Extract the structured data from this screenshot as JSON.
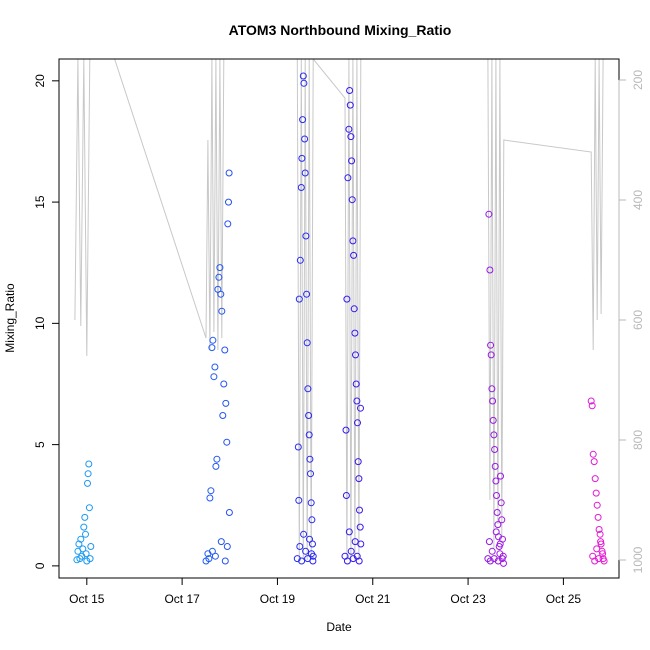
{
  "chart_data": {
    "type": "scatter",
    "title": "ATOM3 Northbound Mixing_Ratio",
    "xlabel": "Date",
    "ylabel": "Mixing_Ratio",
    "x_type": "date",
    "xlim": [
      "2017-10-14 10:00",
      "2017-10-26 04:00"
    ],
    "ylim": [
      -0.5,
      20.9
    ],
    "y2lim": [
      1030,
      165
    ],
    "x_ticks": [
      {
        "value": "2017-10-15",
        "label": "Oct 15"
      },
      {
        "value": "2017-10-17",
        "label": "Oct 17"
      },
      {
        "value": "2017-10-19",
        "label": "Oct 19"
      },
      {
        "value": "2017-10-21",
        "label": "Oct 21"
      },
      {
        "value": "2017-10-23",
        "label": "Oct 23"
      },
      {
        "value": "2017-10-25",
        "label": "Oct 25"
      }
    ],
    "y_ticks": [
      0,
      5,
      10,
      15,
      20
    ],
    "y2_ticks": [
      200,
      400,
      600,
      800,
      1000
    ],
    "colors": {
      "start": "#1aa6f2",
      "end": "#f21ad2",
      "mid": "#2a1af2",
      "secondary_line": "#c8c8c8",
      "right_axis": "#b8b8b8"
    },
    "marker": "open-circle",
    "series": [
      {
        "group": 1,
        "points": [
          [
            "2017-10-14 19:00",
            0.25
          ],
          [
            "2017-10-14 19:30",
            0.6
          ],
          [
            "2017-10-14 20:00",
            0.9
          ],
          [
            "2017-10-14 20:30",
            0.3
          ],
          [
            "2017-10-14 21:00",
            1.1
          ],
          [
            "2017-10-14 21:30",
            0.4
          ],
          [
            "2017-10-14 22:00",
            0.7
          ],
          [
            "2017-10-14 22:30",
            1.6
          ],
          [
            "2017-10-14 23:00",
            2.0
          ],
          [
            "2017-10-14 23:20",
            1.3
          ],
          [
            "2017-10-14 23:40",
            0.5
          ],
          [
            "2017-10-15 00:00",
            0.2
          ],
          [
            "2017-10-15 00:20",
            3.4
          ],
          [
            "2017-10-15 00:40",
            3.8
          ],
          [
            "2017-10-15 01:00",
            4.2
          ],
          [
            "2017-10-15 01:20",
            2.4
          ],
          [
            "2017-10-15 01:40",
            0.3
          ],
          [
            "2017-10-15 02:00",
            0.8
          ]
        ]
      },
      {
        "group": 2,
        "points": [
          [
            "2017-10-17 12:00",
            0.2
          ],
          [
            "2017-10-17 13:00",
            0.5
          ],
          [
            "2017-10-17 14:00",
            2.8
          ],
          [
            "2017-10-17 14:30",
            3.1
          ],
          [
            "2017-10-17 15:00",
            9.0
          ],
          [
            "2017-10-17 15:30",
            9.3
          ],
          [
            "2017-10-17 16:00",
            7.8
          ],
          [
            "2017-10-17 16:30",
            8.2
          ],
          [
            "2017-10-17 17:00",
            4.1
          ],
          [
            "2017-10-17 17:30",
            4.4
          ],
          [
            "2017-10-17 18:00",
            11.4
          ],
          [
            "2017-10-17 18:30",
            11.9
          ],
          [
            "2017-10-17 19:00",
            12.3
          ],
          [
            "2017-10-17 19:30",
            11.2
          ],
          [
            "2017-10-17 20:00",
            10.5
          ],
          [
            "2017-10-17 20:30",
            6.2
          ],
          [
            "2017-10-17 21:00",
            7.5
          ],
          [
            "2017-10-17 21:30",
            8.9
          ],
          [
            "2017-10-17 22:00",
            6.7
          ],
          [
            "2017-10-17 22:30",
            5.1
          ],
          [
            "2017-10-17 23:00",
            14.1
          ],
          [
            "2017-10-17 23:20",
            15.0
          ],
          [
            "2017-10-17 23:40",
            16.2
          ],
          [
            "2017-10-17 23:50",
            2.2
          ],
          [
            "2017-10-17 13:30",
            0.3
          ],
          [
            "2017-10-17 15:15",
            0.6
          ],
          [
            "2017-10-17 16:45",
            0.4
          ],
          [
            "2017-10-17 19:45",
            1.0
          ],
          [
            "2017-10-17 21:45",
            0.2
          ],
          [
            "2017-10-17 22:45",
            0.8
          ]
        ]
      },
      {
        "group": 3,
        "points": [
          [
            "2017-10-19 10:00",
            0.3
          ],
          [
            "2017-10-19 10:30",
            4.9
          ],
          [
            "2017-10-19 11:00",
            11.0
          ],
          [
            "2017-10-19 11:30",
            12.6
          ],
          [
            "2017-10-19 12:00",
            15.6
          ],
          [
            "2017-10-19 12:20",
            16.8
          ],
          [
            "2017-10-19 12:40",
            18.4
          ],
          [
            "2017-10-19 13:00",
            20.2
          ],
          [
            "2017-10-19 13:20",
            19.9
          ],
          [
            "2017-10-19 13:40",
            17.6
          ],
          [
            "2017-10-19 14:00",
            16.2
          ],
          [
            "2017-10-19 14:20",
            13.6
          ],
          [
            "2017-10-19 14:40",
            11.2
          ],
          [
            "2017-10-19 15:00",
            9.2
          ],
          [
            "2017-10-19 15:20",
            7.3
          ],
          [
            "2017-10-19 15:40",
            6.2
          ],
          [
            "2017-10-19 16:00",
            5.4
          ],
          [
            "2017-10-19 16:20",
            4.4
          ],
          [
            "2017-10-19 16:40",
            3.8
          ],
          [
            "2017-10-19 17:00",
            2.6
          ],
          [
            "2017-10-19 17:20",
            1.9
          ],
          [
            "2017-10-19 17:40",
            0.9
          ],
          [
            "2017-10-19 18:00",
            0.4
          ],
          [
            "2017-10-19 10:45",
            2.7
          ],
          [
            "2017-10-19 11:15",
            0.8
          ],
          [
            "2017-10-19 12:10",
            0.2
          ],
          [
            "2017-10-19 13:10",
            1.3
          ],
          [
            "2017-10-19 14:10",
            0.6
          ],
          [
            "2017-10-19 15:10",
            0.3
          ],
          [
            "2017-10-19 16:10",
            1.1
          ],
          [
            "2017-10-19 17:10",
            0.5
          ],
          [
            "2017-10-19 17:50",
            0.2
          ]
        ]
      },
      {
        "group": 4,
        "points": [
          [
            "2017-10-20 10:00",
            0.4
          ],
          [
            "2017-10-20 10:30",
            5.6
          ],
          [
            "2017-10-20 11:00",
            11.0
          ],
          [
            "2017-10-20 11:30",
            16.0
          ],
          [
            "2017-10-20 12:00",
            18.0
          ],
          [
            "2017-10-20 12:20",
            19.6
          ],
          [
            "2017-10-20 12:40",
            19.0
          ],
          [
            "2017-10-20 13:00",
            17.7
          ],
          [
            "2017-10-20 13:20",
            16.7
          ],
          [
            "2017-10-20 13:40",
            15.1
          ],
          [
            "2017-10-20 14:00",
            13.4
          ],
          [
            "2017-10-20 14:20",
            12.8
          ],
          [
            "2017-10-20 14:40",
            10.6
          ],
          [
            "2017-10-20 15:00",
            9.6
          ],
          [
            "2017-10-20 15:20",
            8.7
          ],
          [
            "2017-10-20 15:40",
            7.5
          ],
          [
            "2017-10-20 16:00",
            6.8
          ],
          [
            "2017-10-20 16:20",
            5.9
          ],
          [
            "2017-10-20 16:40",
            4.3
          ],
          [
            "2017-10-20 17:00",
            3.6
          ],
          [
            "2017-10-20 17:20",
            2.3
          ],
          [
            "2017-10-20 17:40",
            1.6
          ],
          [
            "2017-10-20 18:00",
            0.9
          ],
          [
            "2017-10-20 10:45",
            2.9
          ],
          [
            "2017-10-20 11:15",
            0.2
          ],
          [
            "2017-10-20 12:10",
            1.4
          ],
          [
            "2017-10-20 13:10",
            0.6
          ],
          [
            "2017-10-20 14:10",
            0.3
          ],
          [
            "2017-10-20 15:10",
            1.0
          ],
          [
            "2017-10-20 16:10",
            0.4
          ],
          [
            "2017-10-20 17:10",
            0.2
          ],
          [
            "2017-10-20 17:50",
            6.5
          ]
        ]
      },
      {
        "group": 5,
        "points": [
          [
            "2017-10-23 10:00",
            0.3
          ],
          [
            "2017-10-23 10:30",
            14.5
          ],
          [
            "2017-10-23 11:00",
            12.2
          ],
          [
            "2017-10-23 11:20",
            9.1
          ],
          [
            "2017-10-23 11:40",
            8.7
          ],
          [
            "2017-10-23 12:00",
            7.3
          ],
          [
            "2017-10-23 12:20",
            6.8
          ],
          [
            "2017-10-23 12:40",
            6.0
          ],
          [
            "2017-10-23 13:00",
            5.4
          ],
          [
            "2017-10-23 13:20",
            4.8
          ],
          [
            "2017-10-23 13:40",
            4.1
          ],
          [
            "2017-10-23 14:00",
            3.5
          ],
          [
            "2017-10-23 14:20",
            2.9
          ],
          [
            "2017-10-23 14:40",
            2.2
          ],
          [
            "2017-10-23 15:00",
            1.7
          ],
          [
            "2017-10-23 15:20",
            1.2
          ],
          [
            "2017-10-23 15:40",
            0.8
          ],
          [
            "2017-10-23 16:00",
            0.5
          ],
          [
            "2017-10-23 16:20",
            3.7
          ],
          [
            "2017-10-23 16:40",
            2.6
          ],
          [
            "2017-10-23 17:00",
            1.9
          ],
          [
            "2017-10-23 17:20",
            1.1
          ],
          [
            "2017-10-23 17:40",
            0.4
          ],
          [
            "2017-10-23 10:45",
            1.0
          ],
          [
            "2017-10-23 11:10",
            0.2
          ],
          [
            "2017-10-23 12:10",
            0.6
          ],
          [
            "2017-10-23 13:10",
            0.3
          ],
          [
            "2017-10-23 14:10",
            1.4
          ],
          [
            "2017-10-23 15:10",
            0.2
          ],
          [
            "2017-10-23 16:10",
            0.9
          ],
          [
            "2017-10-23 17:10",
            0.3
          ],
          [
            "2017-10-23 17:50",
            0.1
          ]
        ]
      },
      {
        "group": 6,
        "points": [
          [
            "2017-10-25 14:00",
            6.8
          ],
          [
            "2017-10-25 14:30",
            6.6
          ],
          [
            "2017-10-25 15:00",
            4.6
          ],
          [
            "2017-10-25 15:30",
            4.3
          ],
          [
            "2017-10-25 16:00",
            3.6
          ],
          [
            "2017-10-25 16:30",
            3.0
          ],
          [
            "2017-10-25 17:00",
            2.5
          ],
          [
            "2017-10-25 17:30",
            2.0
          ],
          [
            "2017-10-25 18:00",
            1.5
          ],
          [
            "2017-10-25 18:30",
            1.3
          ],
          [
            "2017-10-25 19:00",
            0.9
          ],
          [
            "2017-10-25 19:30",
            0.6
          ],
          [
            "2017-10-25 20:00",
            0.3
          ],
          [
            "2017-10-25 20:30",
            0.2
          ],
          [
            "2017-10-25 14:45",
            0.4
          ],
          [
            "2017-10-25 15:45",
            0.2
          ],
          [
            "2017-10-25 16:45",
            0.7
          ],
          [
            "2017-10-25 17:45",
            0.3
          ],
          [
            "2017-10-25 18:45",
            1.0
          ],
          [
            "2017-10-25 19:45",
            0.5
          ]
        ]
      }
    ],
    "secondary_series": {
      "axis": "right",
      "segments": [
        [
          [
            "2017-10-14 18:00",
            600
          ],
          [
            "2017-10-14 19:30",
            165
          ],
          [
            "2017-10-14 21:00",
            610
          ],
          [
            "2017-10-14 22:30",
            165
          ],
          [
            "2017-10-15 00:00",
            660
          ],
          [
            "2017-10-15 01:30",
            165
          ],
          [
            "2017-10-15 02:30",
            165
          ],
          [
            "2017-10-15 14:00",
            165
          ],
          [
            "2017-10-17 12:00",
            630
          ],
          [
            "2017-10-17 13:00",
            300
          ],
          [
            "2017-10-17 14:00",
            650
          ],
          [
            "2017-10-17 15:00",
            165
          ],
          [
            "2017-10-17 16:00",
            620
          ],
          [
            "2017-10-17 17:00",
            165
          ],
          [
            "2017-10-17 18:00",
            650
          ],
          [
            "2017-10-17 19:00",
            165
          ],
          [
            "2017-10-17 20:00",
            630
          ],
          [
            "2017-10-17 21:00",
            165
          ],
          [
            "2017-10-17 22:00",
            165
          ],
          [
            "2017-10-18 18:00",
            165
          ],
          [
            "2017-10-19 10:00",
            165
          ],
          [
            "2017-10-19 11:00",
            1000
          ],
          [
            "2017-10-19 12:00",
            165
          ],
          [
            "2017-10-19 13:00",
            1000
          ],
          [
            "2017-10-19 14:00",
            165
          ],
          [
            "2017-10-19 15:00",
            1000
          ],
          [
            "2017-10-19 16:00",
            165
          ],
          [
            "2017-10-19 17:00",
            1000
          ],
          [
            "2017-10-19 18:00",
            165
          ],
          [
            "2017-10-20 10:00",
            230
          ],
          [
            "2017-10-20 11:00",
            1000
          ],
          [
            "2017-10-20 12:00",
            165
          ],
          [
            "2017-10-20 13:00",
            1000
          ],
          [
            "2017-10-20 14:00",
            165
          ],
          [
            "2017-10-20 15:00",
            1000
          ],
          [
            "2017-10-20 16:00",
            165
          ],
          [
            "2017-10-20 17:00",
            1000
          ],
          [
            "2017-10-20 18:00",
            165
          ]
        ],
        [
          [
            "2017-10-23 10:00",
            165
          ],
          [
            "2017-10-23 11:00",
            900
          ],
          [
            "2017-10-23 12:00",
            165
          ],
          [
            "2017-10-23 13:00",
            980
          ],
          [
            "2017-10-23 14:00",
            165
          ],
          [
            "2017-10-23 15:00",
            940
          ],
          [
            "2017-10-23 16:00",
            165
          ],
          [
            "2017-10-23 17:00",
            960
          ],
          [
            "2017-10-23 18:00",
            300
          ],
          [
            "2017-10-25 14:00",
            320
          ],
          [
            "2017-10-25 15:00",
            650
          ],
          [
            "2017-10-25 16:00",
            165
          ],
          [
            "2017-10-25 17:00",
            600
          ],
          [
            "2017-10-25 18:00",
            165
          ],
          [
            "2017-10-25 19:00",
            590
          ],
          [
            "2017-10-25 20:00",
            165
          ]
        ]
      ]
    }
  }
}
